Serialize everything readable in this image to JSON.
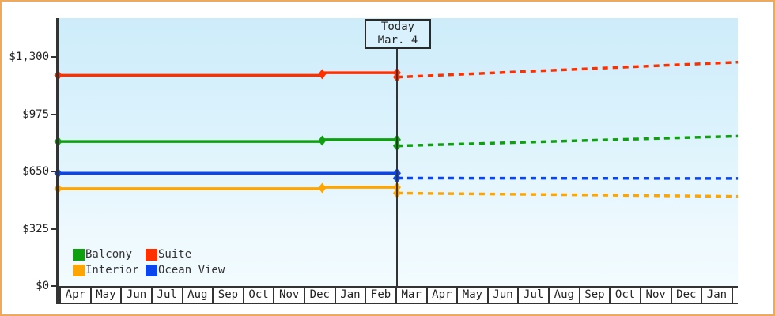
{
  "today_flag": {
    "line1": "Today",
    "line2": "Mar. 4"
  },
  "y_axis": {
    "tick_labels": [
      "$0",
      "$325",
      "$650",
      "$975",
      "$1,300"
    ],
    "tick_values": [
      0,
      325,
      650,
      975,
      1300
    ]
  },
  "x_axis": {
    "month_labels": [
      "Apr",
      "May",
      "Jun",
      "Jul",
      "Aug",
      "Sep",
      "Oct",
      "Nov",
      "Dec",
      "Jan",
      "Feb",
      "Mar",
      "Apr",
      "May",
      "Jun",
      "Jul",
      "Aug",
      "Sep",
      "Oct",
      "Nov",
      "Dec",
      "Jan"
    ]
  },
  "legend": {
    "items": [
      {
        "label": "Balcony",
        "color": "#0fa00f"
      },
      {
        "label": "Suite",
        "color": "#ff3000"
      },
      {
        "label": "Interior",
        "color": "#ffa500"
      },
      {
        "label": "Ocean View",
        "color": "#0a46eb"
      }
    ]
  },
  "chart_data": {
    "type": "line",
    "title": "",
    "xlabel": "",
    "ylabel": "",
    "x_categories": [
      "Apr",
      "May",
      "Jun",
      "Jul",
      "Aug",
      "Sep",
      "Oct",
      "Nov",
      "Dec",
      "Jan",
      "Feb",
      "Mar",
      "Apr",
      "May",
      "Jun",
      "Jul",
      "Aug",
      "Sep",
      "Oct",
      "Nov",
      "Dec",
      "Jan"
    ],
    "y_ticks": [
      0,
      325,
      650,
      975,
      1300
    ],
    "y_tick_labels": [
      "$0",
      "$325",
      "$650",
      "$975",
      "$1,300"
    ],
    "ylim": [
      0,
      1520
    ],
    "grid": false,
    "legend_position": "bottom-left-inside",
    "today": {
      "label": "Today Mar. 4",
      "month_index": 11.1
    },
    "forecast_end_month": 22.27,
    "series": [
      {
        "name": "Suite",
        "color": "#ff3000",
        "history": {
          "points": [
            [
              0,
              1195
            ],
            [
              8.65,
              1195
            ],
            [
              8.65,
              1210
            ],
            [
              11.1,
              1210
            ]
          ],
          "markers": [
            [
              0,
              1195
            ],
            [
              8.65,
              1202
            ],
            [
              11.1,
              1210
            ]
          ]
        },
        "forecast": {
          "points": [
            [
              11.1,
              1185
            ],
            [
              22.27,
              1270
            ]
          ],
          "markers": [
            [
              11.1,
              1185
            ]
          ]
        }
      },
      {
        "name": "Balcony",
        "color": "#0fa00f",
        "history": {
          "points": [
            [
              0,
              820
            ],
            [
              8.65,
              820
            ],
            [
              8.65,
              830
            ],
            [
              11.1,
              830
            ]
          ],
          "markers": [
            [
              0,
              820
            ],
            [
              8.65,
              825
            ],
            [
              11.1,
              830
            ]
          ]
        },
        "forecast": {
          "points": [
            [
              11.1,
              795
            ],
            [
              22.27,
              850
            ]
          ],
          "markers": [
            [
              11.1,
              795
            ]
          ]
        }
      },
      {
        "name": "Ocean View",
        "color": "#0a46eb",
        "history": {
          "points": [
            [
              0,
              640
            ],
            [
              11.1,
              640
            ]
          ],
          "markers": [
            [
              0,
              640
            ],
            [
              11.1,
              640
            ]
          ]
        },
        "forecast": {
          "points": [
            [
              11.1,
              612
            ],
            [
              22.27,
              610
            ]
          ],
          "markers": [
            [
              11.1,
              612
            ]
          ]
        }
      },
      {
        "name": "Interior",
        "color": "#ffa500",
        "history": {
          "points": [
            [
              0,
              552
            ],
            [
              8.65,
              552
            ],
            [
              8.65,
              560
            ],
            [
              11.1,
              560
            ]
          ],
          "markers": [
            [
              0,
              552
            ],
            [
              8.65,
              556
            ],
            [
              11.1,
              560
            ]
          ]
        },
        "forecast": {
          "points": [
            [
              11.1,
              527
            ],
            [
              22.27,
              508
            ]
          ],
          "markers": [
            [
              11.1,
              527
            ]
          ]
        }
      }
    ]
  },
  "style_colors": {
    "frame_border": "#edaa5c",
    "axis": "#333333",
    "plot_bg_top": "#cdecfa",
    "plot_bg_bottom": "#f2fcff",
    "flag_fill": "#d9f1fc"
  }
}
